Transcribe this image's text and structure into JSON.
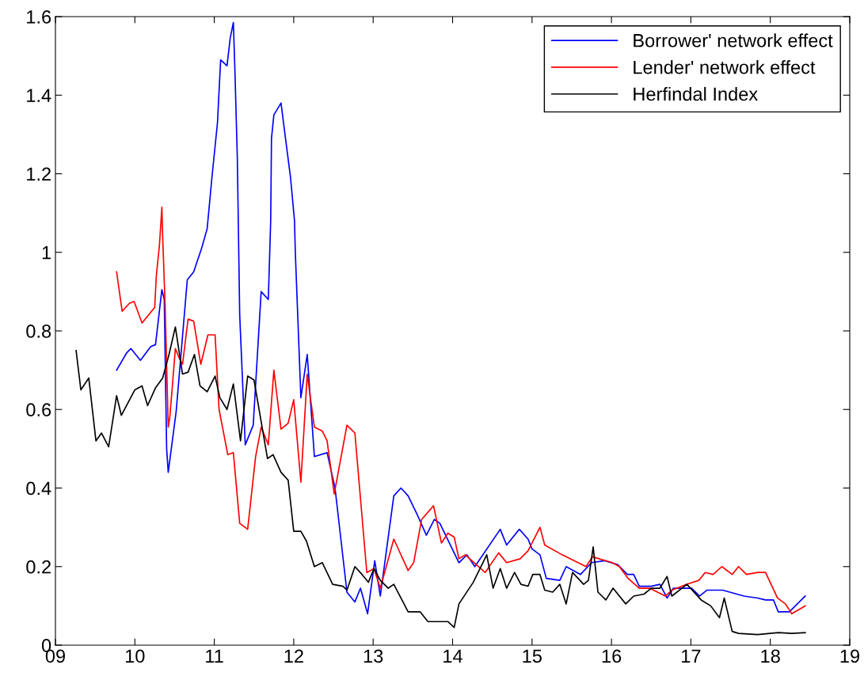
{
  "chart_data": {
    "type": "line",
    "xlim": [
      9,
      19
    ],
    "ylim": [
      0,
      1.6
    ],
    "xticks": [
      {
        "value": 9,
        "label": "09"
      },
      {
        "value": 10,
        "label": "10"
      },
      {
        "value": 11,
        "label": "11"
      },
      {
        "value": 12,
        "label": "12"
      },
      {
        "value": 13,
        "label": "13"
      },
      {
        "value": 14,
        "label": "14"
      },
      {
        "value": 15,
        "label": "15"
      },
      {
        "value": 16,
        "label": "16"
      },
      {
        "value": 17,
        "label": "17"
      },
      {
        "value": 18,
        "label": "18"
      },
      {
        "value": 19,
        "label": "19"
      }
    ],
    "yticks": [
      0,
      0.2,
      0.4,
      0.6,
      0.8,
      1,
      1.2,
      1.4,
      1.6
    ],
    "grid": false,
    "legend": "top right",
    "line_style": "solid",
    "marker": "none",
    "series": [
      {
        "name": "Borrower' network effect",
        "color": "#0000ff",
        "x": [
          9.77,
          9.9,
          9.95,
          10.07,
          10.2,
          10.26,
          10.34,
          10.37,
          10.4,
          10.42,
          10.52,
          10.66,
          10.74,
          10.84,
          10.91,
          10.97,
          11.04,
          11.08,
          11.16,
          11.2,
          11.24,
          11.26,
          11.29,
          11.32,
          11.39,
          11.49,
          11.59,
          11.68,
          11.71,
          11.72,
          11.75,
          11.84,
          11.89,
          11.96,
          12.01,
          12.02,
          12.09,
          12.17,
          12.26,
          12.42,
          12.52,
          12.67,
          12.77,
          12.84,
          12.93,
          13.02,
          13.09,
          13.26,
          13.35,
          13.44,
          13.56,
          13.67,
          13.77,
          13.84,
          14.08,
          14.18,
          14.28,
          14.6,
          14.68,
          14.84,
          14.95,
          15.0,
          15.1,
          15.18,
          15.35,
          15.43,
          15.61,
          15.75,
          15.91,
          16.08,
          16.2,
          16.28,
          16.35,
          16.5,
          16.61,
          16.7,
          16.78,
          17.01,
          17.11,
          17.2,
          17.4,
          17.67,
          17.84,
          17.94,
          18.04,
          18.1,
          18.24,
          18.34,
          18.44
        ],
        "values": [
          0.7,
          0.745,
          0.755,
          0.725,
          0.76,
          0.765,
          0.905,
          0.88,
          0.5,
          0.44,
          0.595,
          0.93,
          0.95,
          1.01,
          1.06,
          1.19,
          1.33,
          1.49,
          1.475,
          1.545,
          1.585,
          1.46,
          1.24,
          0.84,
          0.51,
          0.56,
          0.9,
          0.88,
          1.08,
          1.29,
          1.35,
          1.38,
          1.3,
          1.19,
          1.08,
          1.0,
          0.63,
          0.74,
          0.48,
          0.49,
          0.4,
          0.135,
          0.11,
          0.145,
          0.08,
          0.215,
          0.125,
          0.38,
          0.4,
          0.38,
          0.33,
          0.28,
          0.32,
          0.31,
          0.21,
          0.23,
          0.2,
          0.295,
          0.255,
          0.295,
          0.27,
          0.245,
          0.23,
          0.17,
          0.165,
          0.2,
          0.18,
          0.21,
          0.215,
          0.205,
          0.18,
          0.18,
          0.15,
          0.15,
          0.155,
          0.12,
          0.145,
          0.145,
          0.125,
          0.14,
          0.14,
          0.125,
          0.12,
          0.115,
          0.115,
          0.085,
          0.085,
          0.105,
          0.125
        ]
      },
      {
        "name": "Lender' network effect",
        "color": "#ff0000",
        "x": [
          9.77,
          9.84,
          9.93,
          9.99,
          10.09,
          10.25,
          10.27,
          10.31,
          10.34,
          10.35,
          10.38,
          10.42,
          10.44,
          10.51,
          10.56,
          10.6,
          10.67,
          10.74,
          10.83,
          10.92,
          11.01,
          11.06,
          11.17,
          11.24,
          11.32,
          11.42,
          11.52,
          11.59,
          11.68,
          11.75,
          11.84,
          11.93,
          12.0,
          12.09,
          12.17,
          12.26,
          12.36,
          12.42,
          12.51,
          12.67,
          12.77,
          12.92,
          13.01,
          13.09,
          13.26,
          13.44,
          13.51,
          13.61,
          13.76,
          13.86,
          13.94,
          14.02,
          14.08,
          14.16,
          14.41,
          14.58,
          14.68,
          14.85,
          14.95,
          15.1,
          15.16,
          15.38,
          15.53,
          15.68,
          15.76,
          16.01,
          16.1,
          16.21,
          16.35,
          16.48,
          16.68,
          16.76,
          16.95,
          17.1,
          17.18,
          17.28,
          17.39,
          17.52,
          17.6,
          17.7,
          17.84,
          17.94,
          18.09,
          18.19,
          18.27,
          18.44
        ],
        "values": [
          0.95,
          0.85,
          0.87,
          0.875,
          0.82,
          0.86,
          0.94,
          1.02,
          1.115,
          1.04,
          0.87,
          0.555,
          0.58,
          0.755,
          0.73,
          0.715,
          0.83,
          0.825,
          0.715,
          0.79,
          0.79,
          0.6,
          0.485,
          0.49,
          0.31,
          0.295,
          0.48,
          0.555,
          0.51,
          0.7,
          0.55,
          0.565,
          0.625,
          0.415,
          0.69,
          0.555,
          0.545,
          0.52,
          0.385,
          0.56,
          0.54,
          0.185,
          0.195,
          0.145,
          0.27,
          0.19,
          0.21,
          0.32,
          0.355,
          0.26,
          0.285,
          0.275,
          0.22,
          0.23,
          0.185,
          0.235,
          0.21,
          0.22,
          0.24,
          0.3,
          0.255,
          0.23,
          0.215,
          0.2,
          0.225,
          0.21,
          0.2,
          0.17,
          0.145,
          0.145,
          0.125,
          0.14,
          0.155,
          0.165,
          0.185,
          0.18,
          0.2,
          0.18,
          0.2,
          0.18,
          0.185,
          0.185,
          0.12,
          0.105,
          0.08,
          0.1
        ]
      },
      {
        "name": "Herfindal Index",
        "color": "#000000",
        "x": [
          9.26,
          9.32,
          9.42,
          9.51,
          9.58,
          9.67,
          9.77,
          9.83,
          10.0,
          10.09,
          10.16,
          10.26,
          10.35,
          10.43,
          10.51,
          10.6,
          10.67,
          10.75,
          10.82,
          10.91,
          11.01,
          11.07,
          11.16,
          11.24,
          11.33,
          11.42,
          11.5,
          11.67,
          11.74,
          11.84,
          11.93,
          12.0,
          12.09,
          12.16,
          12.26,
          12.36,
          12.49,
          12.62,
          12.67,
          12.77,
          12.86,
          12.94,
          13.01,
          13.09,
          13.19,
          13.26,
          13.44,
          13.59,
          13.69,
          13.86,
          13.94,
          14.02,
          14.08,
          14.26,
          14.43,
          14.51,
          14.6,
          14.68,
          14.78,
          14.86,
          14.95,
          15.01,
          15.1,
          15.16,
          15.26,
          15.35,
          15.43,
          15.51,
          15.65,
          15.71,
          15.77,
          15.83,
          15.93,
          16.02,
          16.18,
          16.28,
          16.41,
          16.5,
          16.61,
          16.7,
          16.76,
          16.95,
          17.13,
          17.25,
          17.36,
          17.42,
          17.52,
          17.6,
          17.84,
          18.1,
          18.27,
          18.44
        ],
        "values": [
          0.75,
          0.65,
          0.68,
          0.52,
          0.54,
          0.505,
          0.635,
          0.585,
          0.65,
          0.66,
          0.61,
          0.655,
          0.68,
          0.74,
          0.81,
          0.69,
          0.695,
          0.74,
          0.66,
          0.645,
          0.685,
          0.63,
          0.6,
          0.665,
          0.52,
          0.685,
          0.675,
          0.475,
          0.485,
          0.44,
          0.42,
          0.29,
          0.29,
          0.265,
          0.2,
          0.21,
          0.155,
          0.15,
          0.14,
          0.2,
          0.18,
          0.16,
          0.195,
          0.165,
          0.145,
          0.155,
          0.085,
          0.085,
          0.06,
          0.06,
          0.06,
          0.045,
          0.105,
          0.16,
          0.23,
          0.145,
          0.195,
          0.145,
          0.185,
          0.155,
          0.15,
          0.18,
          0.18,
          0.14,
          0.135,
          0.155,
          0.105,
          0.185,
          0.155,
          0.165,
          0.25,
          0.135,
          0.115,
          0.145,
          0.105,
          0.125,
          0.13,
          0.145,
          0.145,
          0.175,
          0.125,
          0.155,
          0.115,
          0.1,
          0.07,
          0.12,
          0.035,
          0.03,
          0.027,
          0.032,
          0.03,
          0.032
        ]
      }
    ]
  }
}
